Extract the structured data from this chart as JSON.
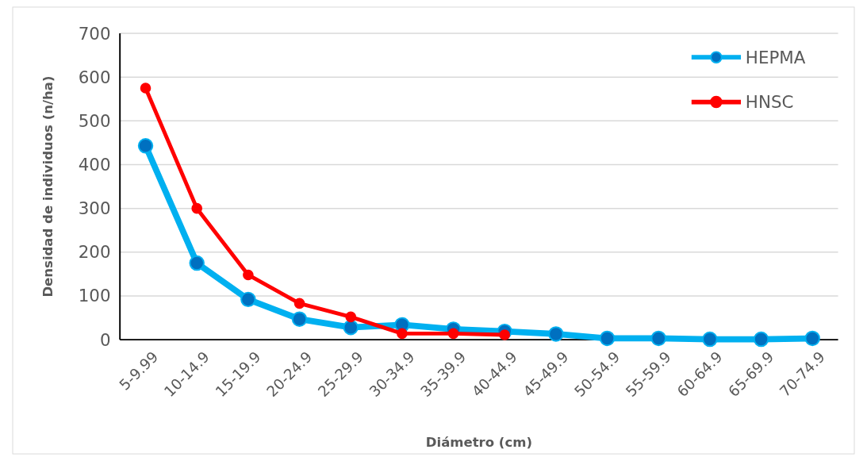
{
  "chart_data": {
    "type": "line",
    "xlabel": "Diámetro (cm)",
    "ylabel": "Densidad de individuos  (n/ha)",
    "categories": [
      "5-9.99",
      "10-14.9",
      "15-19.9",
      "20-24.9",
      "25-29.9",
      "30-34.9",
      "35-39.9",
      "40-44.9",
      "45-49.9",
      "50-54.9",
      "55-59.9",
      "60-64.9",
      "65-69.9",
      "70-74.9"
    ],
    "series": [
      {
        "name": "HEPMA",
        "color": "#00b0f0",
        "values": [
          443,
          175,
          92,
          47,
          28,
          34,
          24,
          19,
          13,
          3,
          3,
          1,
          1,
          3
        ]
      },
      {
        "name": "HNSC",
        "color": "#ff0000",
        "values": [
          575,
          300,
          148,
          83,
          52,
          14,
          14,
          11,
          null,
          null,
          null,
          null,
          null,
          null
        ]
      }
    ],
    "ylim": [
      0,
      700
    ],
    "yticks": [
      0,
      100,
      200,
      300,
      400,
      500,
      600,
      700
    ],
    "grid": "y",
    "legend": "top right",
    "marker": "circle",
    "line_style": "solid"
  }
}
